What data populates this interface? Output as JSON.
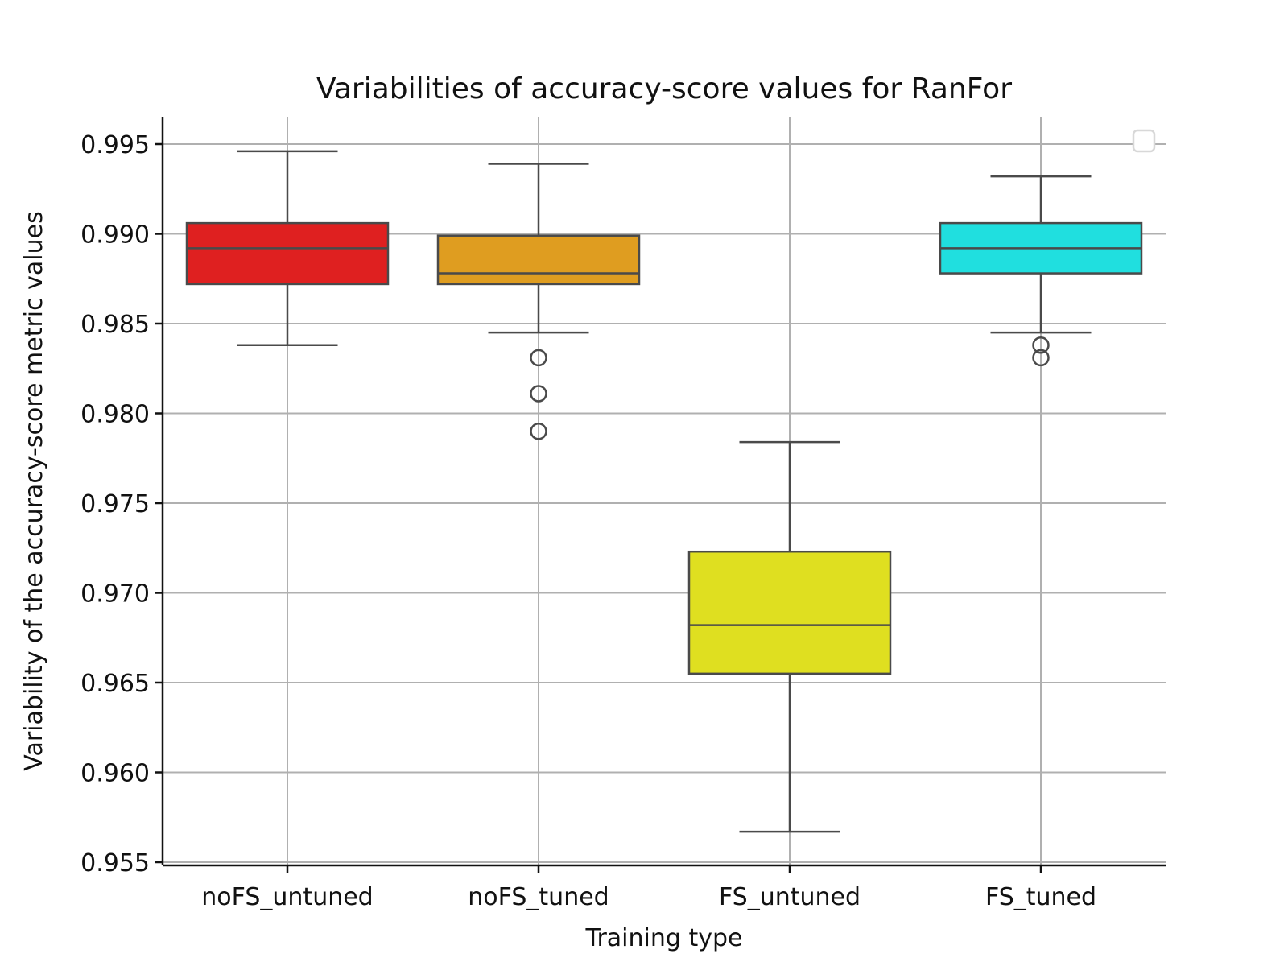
{
  "chart_data": {
    "type": "box",
    "title": "Variabilities of accuracy-score values for RanFor",
    "xlabel": "Training type",
    "ylabel": "Variability of the accuracy-score metric values",
    "ylim": [
      0.955,
      0.9965
    ],
    "yticks": [
      0.955,
      0.96,
      0.965,
      0.97,
      0.975,
      0.98,
      0.985,
      0.99,
      0.995
    ],
    "ytick_labels": [
      "0.955",
      "0.960",
      "0.965",
      "0.970",
      "0.975",
      "0.980",
      "0.985",
      "0.990",
      "0.995"
    ],
    "grid": true,
    "legend": "top-right (empty)",
    "categories": [
      "noFS_untuned",
      "noFS_tuned",
      "FS_untuned",
      "FS_tuned"
    ],
    "boxes": [
      {
        "category": "noFS_untuned",
        "whisker_low": 0.9838,
        "q1": 0.9872,
        "median": 0.9892,
        "q3": 0.9906,
        "whisker_high": 0.9946,
        "outliers": [],
        "color": "#df2020"
      },
      {
        "category": "noFS_tuned",
        "whisker_low": 0.9845,
        "q1": 0.9872,
        "median": 0.9878,
        "q3": 0.9899,
        "whisker_high": 0.9939,
        "outliers": [
          0.9831,
          0.9811,
          0.979
        ],
        "color": "#df9d20"
      },
      {
        "category": "FS_untuned",
        "whisker_low": 0.9567,
        "q1": 0.9655,
        "median": 0.9682,
        "q3": 0.9723,
        "whisker_high": 0.9784,
        "outliers": [],
        "color": "#dfdf20"
      },
      {
        "category": "FS_tuned",
        "whisker_low": 0.9845,
        "q1": 0.9878,
        "median": 0.9892,
        "q3": 0.9906,
        "whisker_high": 0.9932,
        "outliers": [
          0.9838,
          0.9831
        ],
        "color": "#20dfdf"
      }
    ]
  }
}
